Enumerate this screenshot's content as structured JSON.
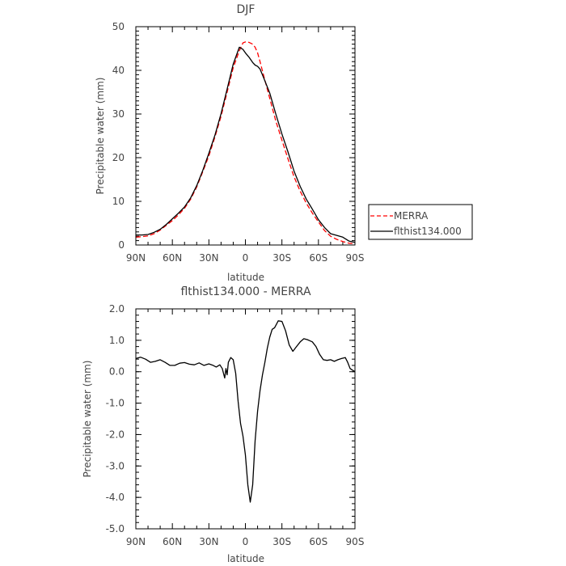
{
  "chart_data": [
    {
      "type": "line",
      "title": "DJF",
      "xlabel": "latitude",
      "ylabel": "Precipitable water (mm)",
      "xlim": [
        90,
        -90
      ],
      "ylim": [
        0,
        50
      ],
      "grid": false,
      "legend_placement": "right",
      "x_ticks": [
        90,
        60,
        30,
        0,
        -30,
        -60,
        -90
      ],
      "x_tick_labels": [
        "90N",
        "60N",
        "30N",
        "0",
        "30S",
        "60S",
        "90S"
      ],
      "y_ticks": [
        0,
        10,
        20,
        30,
        40,
        50
      ],
      "y_tick_labels": [
        "0",
        "10",
        "20",
        "30",
        "40",
        "50"
      ],
      "legend": [
        "MERRA",
        "flthist134.000"
      ],
      "series": [
        {
          "name": "MERRA",
          "color": "#ff0000",
          "dash": "dashed",
          "x": [
            90,
            85,
            80,
            75,
            70,
            65,
            60,
            55,
            50,
            45,
            40,
            35,
            30,
            25,
            20,
            15,
            10,
            5,
            2,
            0,
            -3,
            -6,
            -8,
            -10,
            -12,
            -15,
            -20,
            -25,
            -30,
            -35,
            -40,
            -45,
            -50,
            -55,
            -60,
            -65,
            -70,
            -75,
            -80,
            -85,
            -90
          ],
          "y": [
            1.8,
            1.9,
            2.1,
            2.6,
            3.4,
            4.5,
            5.6,
            6.9,
            8.4,
            10.5,
            13.3,
            16.8,
            20.4,
            24.8,
            29.5,
            35.0,
            40.6,
            44.5,
            46.3,
            46.5,
            46.4,
            46.0,
            45.3,
            44.0,
            42.0,
            38.8,
            33.6,
            28.4,
            24.0,
            19.7,
            15.6,
            12.3,
            9.6,
            7.3,
            5.3,
            3.3,
            2.0,
            1.3,
            0.8,
            0.4,
            0.3
          ]
        },
        {
          "name": "flthist134.000",
          "color": "#000000",
          "dash": "solid",
          "x": [
            90,
            85,
            80,
            75,
            70,
            65,
            60,
            55,
            50,
            45,
            40,
            35,
            30,
            25,
            20,
            15,
            10,
            5,
            2,
            0,
            -3,
            -6,
            -8,
            -10,
            -12,
            -15,
            -20,
            -25,
            -30,
            -35,
            -40,
            -45,
            -50,
            -55,
            -60,
            -65,
            -70,
            -75,
            -80,
            -85,
            -90
          ],
          "y": [
            2.3,
            2.3,
            2.4,
            2.9,
            3.6,
            4.7,
            6.0,
            7.3,
            8.7,
            10.8,
            13.6,
            17.1,
            21.0,
            25.2,
            30.1,
            35.7,
            41.4,
            45.3,
            44.8,
            44.0,
            43.0,
            41.8,
            41.2,
            40.9,
            40.3,
            38.3,
            34.8,
            30.0,
            25.4,
            21.3,
            16.9,
            13.4,
            10.5,
            8.2,
            5.8,
            4.0,
            2.6,
            2.2,
            1.8,
            0.9,
            0.6
          ]
        }
      ]
    },
    {
      "type": "line",
      "title": "flthist134.000 - MERRA",
      "xlabel": "latitude",
      "ylabel": "Precipitable water (mm)",
      "xlim": [
        90,
        -90
      ],
      "ylim": [
        -5.0,
        2.0
      ],
      "grid": false,
      "x_ticks": [
        90,
        60,
        30,
        0,
        -30,
        -60,
        -90
      ],
      "x_tick_labels": [
        "90N",
        "60N",
        "30N",
        "0",
        "30S",
        "60S",
        "90S"
      ],
      "y_ticks": [
        -5,
        -4,
        -3,
        -2,
        -1,
        0,
        1,
        2
      ],
      "y_tick_labels": [
        "-5.0",
        "-4.0",
        "-3.0",
        "-2.0",
        "-1.0",
        "0.0",
        "1.0",
        "2.0"
      ],
      "series": [
        {
          "color": "#000000",
          "dash": "solid",
          "x": [
            90,
            86,
            82,
            78,
            74,
            70,
            66,
            62,
            58,
            54,
            50,
            46,
            42,
            38,
            34,
            30,
            27,
            24,
            21,
            19,
            17,
            16,
            15,
            14,
            12,
            10,
            8,
            6,
            4,
            2,
            0,
            -2,
            -4,
            -6,
            -8,
            -10,
            -12,
            -14,
            -16,
            -18,
            -20,
            -22,
            -24,
            -27,
            -30,
            -33,
            -36,
            -39,
            -42,
            -45,
            -48,
            -51,
            -55,
            -58,
            -61,
            -64,
            -67,
            -70,
            -73,
            -76,
            -79,
            -82,
            -84,
            -86,
            -88,
            -90
          ],
          "y": [
            0.42,
            0.46,
            0.4,
            0.3,
            0.33,
            0.38,
            0.3,
            0.2,
            0.2,
            0.27,
            0.29,
            0.24,
            0.22,
            0.28,
            0.2,
            0.25,
            0.21,
            0.15,
            0.22,
            0.1,
            -0.2,
            0.1,
            -0.1,
            0.3,
            0.45,
            0.38,
            -0.05,
            -0.95,
            -1.65,
            -2.05,
            -2.65,
            -3.6,
            -4.15,
            -3.6,
            -2.2,
            -1.25,
            -0.6,
            -0.1,
            0.3,
            0.75,
            1.1,
            1.35,
            1.4,
            1.62,
            1.6,
            1.3,
            0.85,
            0.65,
            0.8,
            0.95,
            1.05,
            1.02,
            0.95,
            0.8,
            0.55,
            0.38,
            0.36,
            0.38,
            0.33,
            0.38,
            0.42,
            0.45,
            0.3,
            0.1,
            0.05,
            0.0
          ]
        }
      ]
    }
  ]
}
